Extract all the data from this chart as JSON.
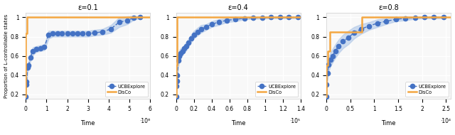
{
  "panels": [
    {
      "title": "ε=0.1",
      "xlabel": "Time",
      "ylabel": "Proportion of L-controllable states",
      "xscale_label": "·10⁶",
      "xlim": [
        0,
        6000000.0
      ],
      "xticks": [
        0,
        1000000.0,
        2000000.0,
        3000000.0,
        4000000.0,
        5000000.0,
        6000000.0
      ],
      "xtick_labels": [
        "0",
        "1",
        "2",
        "3",
        "4",
        "5",
        "6"
      ],
      "ylim": [
        0.15,
        1.05
      ],
      "yticks": [
        0.2,
        0.4,
        0.6,
        0.8,
        1.0
      ],
      "ytick_labels": [
        "0.2",
        "0.4",
        "0.6",
        "0.8",
        "1"
      ],
      "ucbexplore_x": [
        0,
        15000.0,
        40000.0,
        90000.0,
        140000.0,
        220000.0,
        350000.0,
        500000.0,
        700000.0,
        900000.0,
        1100000.0,
        1300000.0,
        1550000.0,
        1750000.0,
        2000000.0,
        2250000.0,
        2500000.0,
        2750000.0,
        3000000.0,
        3300000.0,
        3700000.0,
        4100000.0,
        4500000.0,
        4900000.0,
        5200000.0,
        5500000.0
      ],
      "ucbexplore_y": [
        0.175,
        0.3,
        0.33,
        0.48,
        0.5,
        0.58,
        0.65,
        0.67,
        0.68,
        0.69,
        0.82,
        0.83,
        0.83,
        0.83,
        0.83,
        0.83,
        0.83,
        0.83,
        0.83,
        0.84,
        0.85,
        0.88,
        0.95,
        0.97,
        0.995,
        1.0
      ],
      "ucb_err": [
        0.02,
        0.04,
        0.04,
        0.04,
        0.04,
        0.04,
        0.04,
        0.03,
        0.03,
        0.03,
        0.04,
        0.03,
        0.03,
        0.03,
        0.03,
        0.03,
        0.03,
        0.03,
        0.03,
        0.03,
        0.03,
        0.04,
        0.05,
        0.04,
        0.02,
        0.01
      ],
      "disco_x": [
        0,
        8000.0,
        8000.0,
        50000.0,
        50000.0,
        120000.0,
        120000.0,
        6000000.0
      ],
      "disco_y": [
        0.175,
        0.175,
        0.83,
        0.83,
        1.0,
        1.0,
        1.0,
        1.0
      ]
    },
    {
      "title": "ε=0.4",
      "xlabel": "Time",
      "ylabel": "",
      "xscale_label": "·10⁵",
      "xlim": [
        0,
        140000.0
      ],
      "xticks": [
        0,
        20000.0,
        40000.0,
        60000.0,
        80000.0,
        100000.0,
        120000.0,
        140000.0
      ],
      "xtick_labels": [
        "0",
        "0.2",
        "0.4",
        "0.6",
        "0.8",
        "1",
        "1.2",
        "1.4"
      ],
      "ylim": [
        0.15,
        1.05
      ],
      "yticks": [
        0.2,
        0.4,
        0.6,
        0.8,
        1.0
      ],
      "ytick_labels": [
        "0.2",
        "0.4",
        "0.6",
        "0.8",
        "1"
      ],
      "ucbexplore_x": [
        0,
        300.0,
        800.0,
        1500.0,
        2500.0,
        3800.0,
        5500.0,
        7500.0,
        9500.0,
        11800.0,
        14000.0,
        17000.0,
        20000.0,
        24000.0,
        28000.0,
        34000.0,
        40000.0,
        48000.0,
        57000.0,
        67000.0,
        77000.0,
        87000.0,
        97000.0,
        107000.0,
        117000.0,
        127000.0,
        137000.0
      ],
      "ucbexplore_y": [
        0.175,
        0.29,
        0.34,
        0.4,
        0.55,
        0.6,
        0.63,
        0.65,
        0.68,
        0.7,
        0.74,
        0.78,
        0.82,
        0.85,
        0.88,
        0.9,
        0.93,
        0.95,
        0.97,
        0.98,
        0.99,
        0.995,
        0.998,
        1.0,
        1.0,
        1.0,
        1.0
      ],
      "ucb_err": [
        0.01,
        0.05,
        0.05,
        0.07,
        0.07,
        0.06,
        0.05,
        0.04,
        0.04,
        0.04,
        0.04,
        0.04,
        0.04,
        0.04,
        0.04,
        0.03,
        0.03,
        0.03,
        0.02,
        0.02,
        0.01,
        0.01,
        0.01,
        0.01,
        0.01,
        0.01,
        0.01
      ],
      "disco_x": [
        0,
        200.0,
        200.0,
        1200.0,
        1200.0,
        2500.0,
        2500.0,
        140000.0
      ],
      "disco_y": [
        0.175,
        0.175,
        0.5,
        0.5,
        1.0,
        1.0,
        1.0,
        1.0
      ]
    },
    {
      "title": "ε=0.8",
      "xlabel": "Time",
      "ylabel": "",
      "xscale_label": "·10⁴",
      "xlim": [
        0,
        26000.0
      ],
      "xticks": [
        0,
        5000.0,
        10000.0,
        15000.0,
        20000.0,
        25000.0
      ],
      "xtick_labels": [
        "0",
        "0.5",
        "1",
        "1.5",
        "2",
        "2.5"
      ],
      "ylim": [
        0.15,
        1.05
      ],
      "yticks": [
        0.2,
        0.4,
        0.6,
        0.8,
        1.0
      ],
      "ytick_labels": [
        "0.2",
        "0.4",
        "0.6",
        "0.8",
        "1"
      ],
      "ucbexplore_x": [
        0,
        80.0,
        250.0,
        500.0,
        850.0,
        1300.0,
        1900.0,
        2600.0,
        3500.0,
        4600.0,
        5800.0,
        7300.0,
        8900.0,
        10700.0,
        12500.0,
        14500.0,
        16500.0,
        18500.0,
        20500.0,
        22500.0,
        24500.0
      ],
      "ucbexplore_y": [
        0.175,
        0.3,
        0.42,
        0.51,
        0.56,
        0.6,
        0.65,
        0.7,
        0.75,
        0.79,
        0.84,
        0.88,
        0.91,
        0.94,
        0.96,
        0.98,
        0.99,
        0.995,
        1.0,
        1.0,
        1.0
      ],
      "ucb_err": [
        0.02,
        0.05,
        0.07,
        0.07,
        0.07,
        0.07,
        0.07,
        0.07,
        0.07,
        0.07,
        0.06,
        0.05,
        0.04,
        0.04,
        0.03,
        0.02,
        0.02,
        0.01,
        0.01,
        0.01,
        0.01
      ],
      "disco_x": [
        0,
        40.0,
        40.0,
        250.0,
        250.0,
        800.0,
        800.0,
        7500.0,
        7500.0,
        26000.0
      ],
      "disco_y": [
        0.175,
        0.175,
        0.5,
        0.5,
        0.65,
        0.65,
        0.85,
        0.85,
        1.0,
        1.0
      ]
    }
  ],
  "ucb_color": "#4472c4",
  "ucb_fill_color": "#aec6e8",
  "disco_color": "#f4a742",
  "ucb_marker": "o",
  "ucb_markersize": 4.5,
  "ucb_linewidth": 1.0,
  "disco_linewidth": 1.8,
  "legend_ucb": "UCBExplore",
  "legend_disco": "DisCo",
  "bg_color": "#f8f8f8",
  "grid_color": "#ffffff"
}
